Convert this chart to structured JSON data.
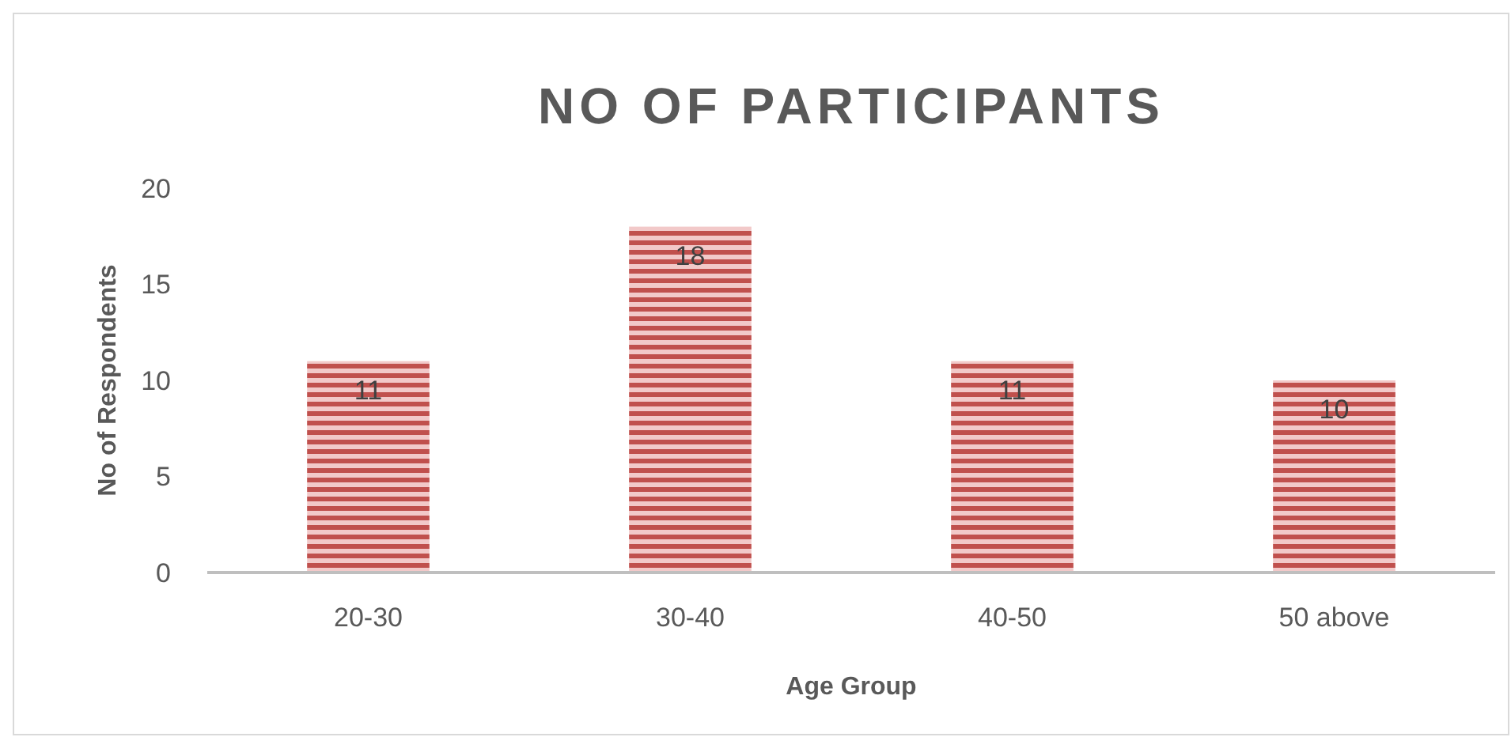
{
  "chart_data": {
    "type": "bar",
    "title": "NO OF PARTICIPANTS",
    "xlabel": "Age Group",
    "ylabel": "No of Respondents",
    "categories": [
      "20-30",
      "30-40",
      "40-50",
      "50 above"
    ],
    "values": [
      11,
      18,
      11,
      10
    ],
    "color": "#c0504d",
    "ylim": [
      0,
      20
    ],
    "yticks": [
      0,
      5,
      10,
      15,
      20
    ],
    "grid": false,
    "data_labels": true
  }
}
